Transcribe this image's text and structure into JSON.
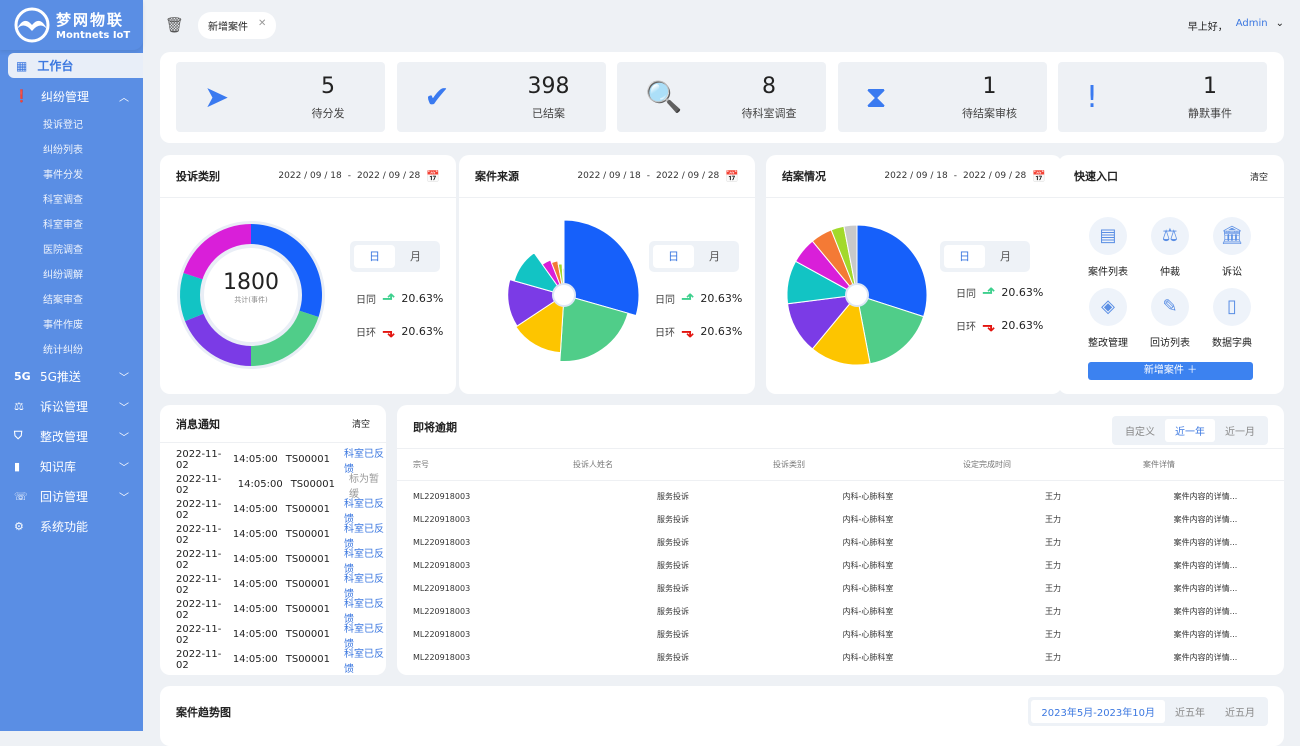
{
  "brand": {
    "name": "梦网物联",
    "sub": "Montnets IoT"
  },
  "sidebar": {
    "active": "工作台",
    "group": "纠纷管理",
    "sub_items": [
      "投诉登记",
      "纠纷列表",
      "事件分发",
      "科室调查",
      "科室审查",
      "医院调查",
      "纠纷调解",
      "结案审查",
      "事件作废",
      "统计纠纷"
    ],
    "items": [
      {
        "icon": "5G",
        "label": "5G推送"
      },
      {
        "icon": "⚖",
        "label": "诉讼管理"
      },
      {
        "icon": "⛉",
        "label": "整改管理"
      },
      {
        "icon": "▮",
        "label": "知识库"
      },
      {
        "icon": "☏",
        "label": "回访管理"
      },
      {
        "icon": "⚙",
        "label": "系统功能"
      }
    ]
  },
  "topbar": {
    "tab": "新增案件",
    "greeting": "早上好，",
    "user": "Admin"
  },
  "stats": [
    {
      "value": "5",
      "label": "待分发",
      "icon": "➤"
    },
    {
      "value": "398",
      "label": "已结案",
      "icon": "✔"
    },
    {
      "value": "8",
      "label": "待科室调查",
      "icon": "🔍"
    },
    {
      "value": "1",
      "label": "待结案审核",
      "icon": "⧗"
    },
    {
      "value": "1",
      "label": "静默事件",
      "icon": "!"
    }
  ],
  "common": {
    "date_from": "2022 / 09 / 18",
    "date_sep": "-",
    "date_to": "2022 / 09 / 28",
    "day": "日",
    "month": "月",
    "yoy": "日同",
    "mom": "日环",
    "yoy_val": "20.63%",
    "mom_val": "20.63%"
  },
  "colors": [
    "#1660fa",
    "#50cd89",
    "#7b3be6",
    "#12c4c4",
    "#d91fd9",
    "#fdc500",
    "#f47a35",
    "#a2d92b",
    "#c9c9c9"
  ],
  "chart_data": [
    {
      "type": "pie",
      "variant": "donut",
      "title": "投诉类别",
      "total": "1800",
      "total_label": "共计(事件)",
      "values": [
        30,
        20,
        19,
        11,
        20
      ],
      "colors": [
        "#1660fa",
        "#50cd89",
        "#7b3be6",
        "#12c4c4",
        "#d91fd9"
      ]
    },
    {
      "type": "pie",
      "variant": "rose",
      "title": "案件来源",
      "values": [
        30,
        22,
        15,
        14,
        11,
        4,
        3,
        2,
        1
      ],
      "colors": [
        "#1660fa",
        "#50cd89",
        "#fdc500",
        "#7b3be6",
        "#12c4c4",
        "#d91fd9",
        "#f47a35",
        "#a2d92b",
        "#c9c9c9"
      ]
    },
    {
      "type": "pie",
      "title": "结案情况",
      "values": [
        30,
        17,
        14,
        12,
        10,
        6,
        5,
        3,
        3
      ],
      "colors": [
        "#1660fa",
        "#50cd89",
        "#fdc500",
        "#7b3be6",
        "#12c4c4",
        "#d91fd9",
        "#f47a35",
        "#a2d92b",
        "#c9c9c9"
      ]
    }
  ],
  "quick": {
    "title": "快速入口",
    "clear": "清空",
    "items": [
      {
        "icon": "▤",
        "label": "案件列表"
      },
      {
        "icon": "⚖",
        "label": "仲裁"
      },
      {
        "icon": "🏛",
        "label": "诉讼"
      },
      {
        "icon": "◈",
        "label": "整改管理"
      },
      {
        "icon": "✎",
        "label": "回访列表"
      },
      {
        "icon": "▯",
        "label": "数据字典"
      }
    ],
    "add": "新增案件 ＋"
  },
  "messages": {
    "title": "消息通知",
    "clear": "清空",
    "rows": [
      {
        "date": "2022-11-02",
        "time": "14:05:00",
        "code": "TS00001",
        "status": "科室已反馈"
      },
      {
        "date": "2022-11-02",
        "time": "14:05:00",
        "code": "TS00001",
        "status": "标为暂缓"
      },
      {
        "date": "2022-11-02",
        "time": "14:05:00",
        "code": "TS00001",
        "status": "科室已反馈"
      },
      {
        "date": "2022-11-02",
        "time": "14:05:00",
        "code": "TS00001",
        "status": "科室已反馈"
      },
      {
        "date": "2022-11-02",
        "time": "14:05:00",
        "code": "TS00001",
        "status": "科室已反馈"
      },
      {
        "date": "2022-11-02",
        "time": "14:05:00",
        "code": "TS00001",
        "status": "科室已反馈"
      },
      {
        "date": "2022-11-02",
        "time": "14:05:00",
        "code": "TS00001",
        "status": "科室已反馈"
      },
      {
        "date": "2022-11-02",
        "time": "14:05:00",
        "code": "TS00001",
        "status": "科室已反馈"
      },
      {
        "date": "2022-11-02",
        "time": "14:05:00",
        "code": "TS00001",
        "status": "科室已反馈"
      }
    ]
  },
  "overdue": {
    "title": "即将逾期",
    "tabs": [
      "自定义",
      "近一年",
      "近一月"
    ],
    "active": 1,
    "columns": [
      "宗号",
      "投诉人姓名",
      "投诉类别",
      "设定完成时间",
      "案件详情"
    ],
    "rows": [
      [
        "ML220918003",
        "服务投诉",
        "内科-心肺科室",
        "王力",
        "案件内容的详情..."
      ],
      [
        "ML220918003",
        "服务投诉",
        "内科-心肺科室",
        "王力",
        "案件内容的详情..."
      ],
      [
        "ML220918003",
        "服务投诉",
        "内科-心肺科室",
        "王力",
        "案件内容的详情..."
      ],
      [
        "ML220918003",
        "服务投诉",
        "内科-心肺科室",
        "王力",
        "案件内容的详情..."
      ],
      [
        "ML220918003",
        "服务投诉",
        "内科-心肺科室",
        "王力",
        "案件内容的详情..."
      ],
      [
        "ML220918003",
        "服务投诉",
        "内科-心肺科室",
        "王力",
        "案件内容的详情..."
      ],
      [
        "ML220918003",
        "服务投诉",
        "内科-心肺科室",
        "王力",
        "案件内容的详情..."
      ],
      [
        "ML220918003",
        "服务投诉",
        "内科-心肺科室",
        "王力",
        "案件内容的详情..."
      ]
    ]
  },
  "trend": {
    "title": "案件趋势图",
    "tabs": [
      "2023年5月-2023年10月",
      "近五年",
      "近五月"
    ],
    "active": 0
  }
}
